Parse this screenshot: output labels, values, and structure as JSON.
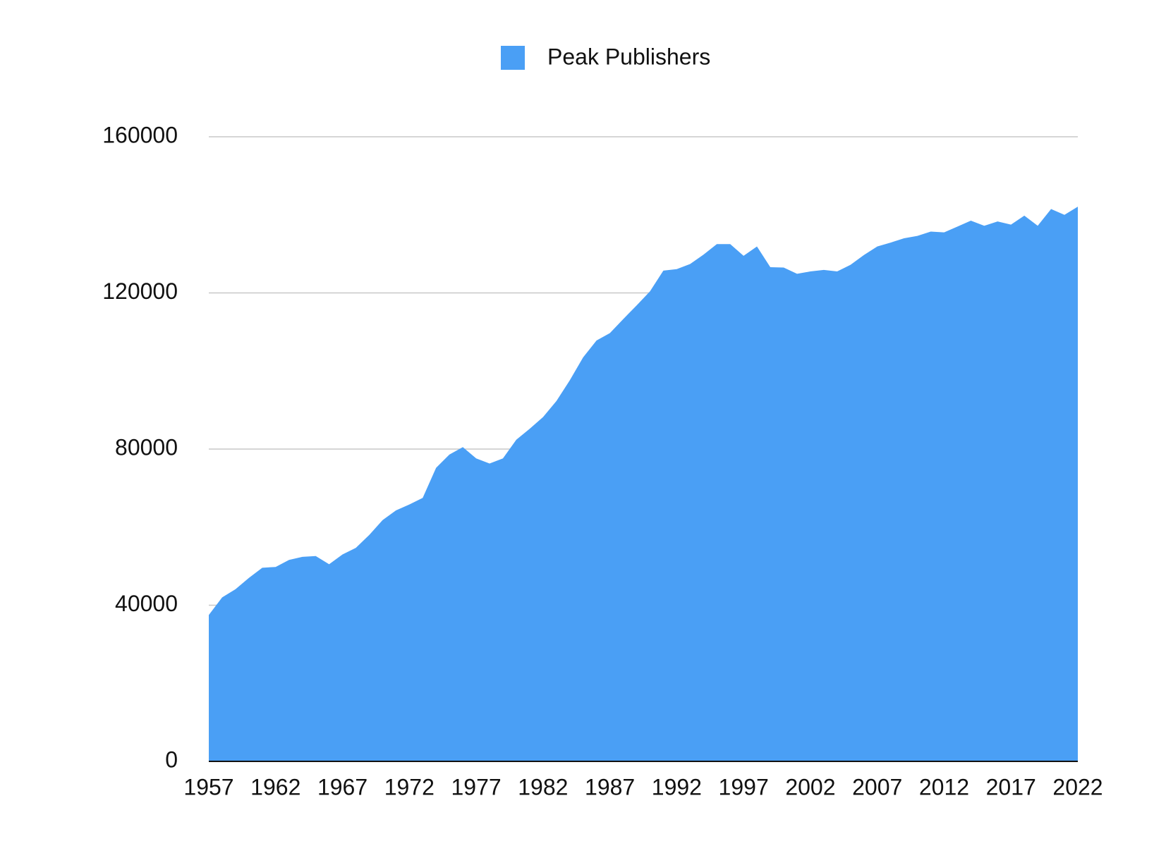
{
  "chart_data": {
    "type": "area",
    "x": [
      1957,
      1958,
      1959,
      1960,
      1961,
      1962,
      1963,
      1964,
      1965,
      1966,
      1967,
      1968,
      1969,
      1970,
      1971,
      1972,
      1973,
      1974,
      1975,
      1976,
      1977,
      1978,
      1979,
      1980,
      1981,
      1982,
      1983,
      1984,
      1985,
      1986,
      1987,
      1988,
      1989,
      1990,
      1991,
      1992,
      1993,
      1994,
      1995,
      1996,
      1997,
      1998,
      1999,
      2000,
      2001,
      2002,
      2003,
      2004,
      2005,
      2006,
      2007,
      2008,
      2009,
      2010,
      2011,
      2012,
      2013,
      2014,
      2015,
      2016,
      2017,
      2018,
      2019,
      2020,
      2021,
      2022
    ],
    "series": [
      {
        "name": "Peak Publishers",
        "color": "#4a9ff5",
        "values": [
          37500,
          42000,
          44100,
          47000,
          49600,
          49800,
          51600,
          52400,
          52600,
          50500,
          53000,
          54700,
          58000,
          61800,
          64300,
          65800,
          67500,
          75200,
          78600,
          80500,
          77600,
          76300,
          77600,
          82400,
          85200,
          88200,
          92300,
          97600,
          103500,
          107800,
          109700,
          113300,
          116800,
          120400,
          125700,
          126100,
          127400,
          129800,
          132500,
          132500,
          129500,
          131900,
          126600,
          126500,
          124900,
          125500,
          125900,
          125500,
          127200,
          129700,
          131900,
          132900,
          134000,
          134600,
          135700,
          135500,
          137000,
          138500,
          137200,
          138300,
          137500,
          139800,
          137200,
          141500,
          140000,
          142100
        ]
      }
    ],
    "xlim": [
      1957,
      2022
    ],
    "xticks": [
      1957,
      1962,
      1967,
      1972,
      1977,
      1982,
      1987,
      1992,
      1997,
      2002,
      2007,
      2012,
      2017,
      2022
    ],
    "ylim": [
      0,
      160000
    ],
    "yticks": [
      0,
      40000,
      80000,
      120000,
      160000
    ],
    "grid": true,
    "legend": "top"
  }
}
